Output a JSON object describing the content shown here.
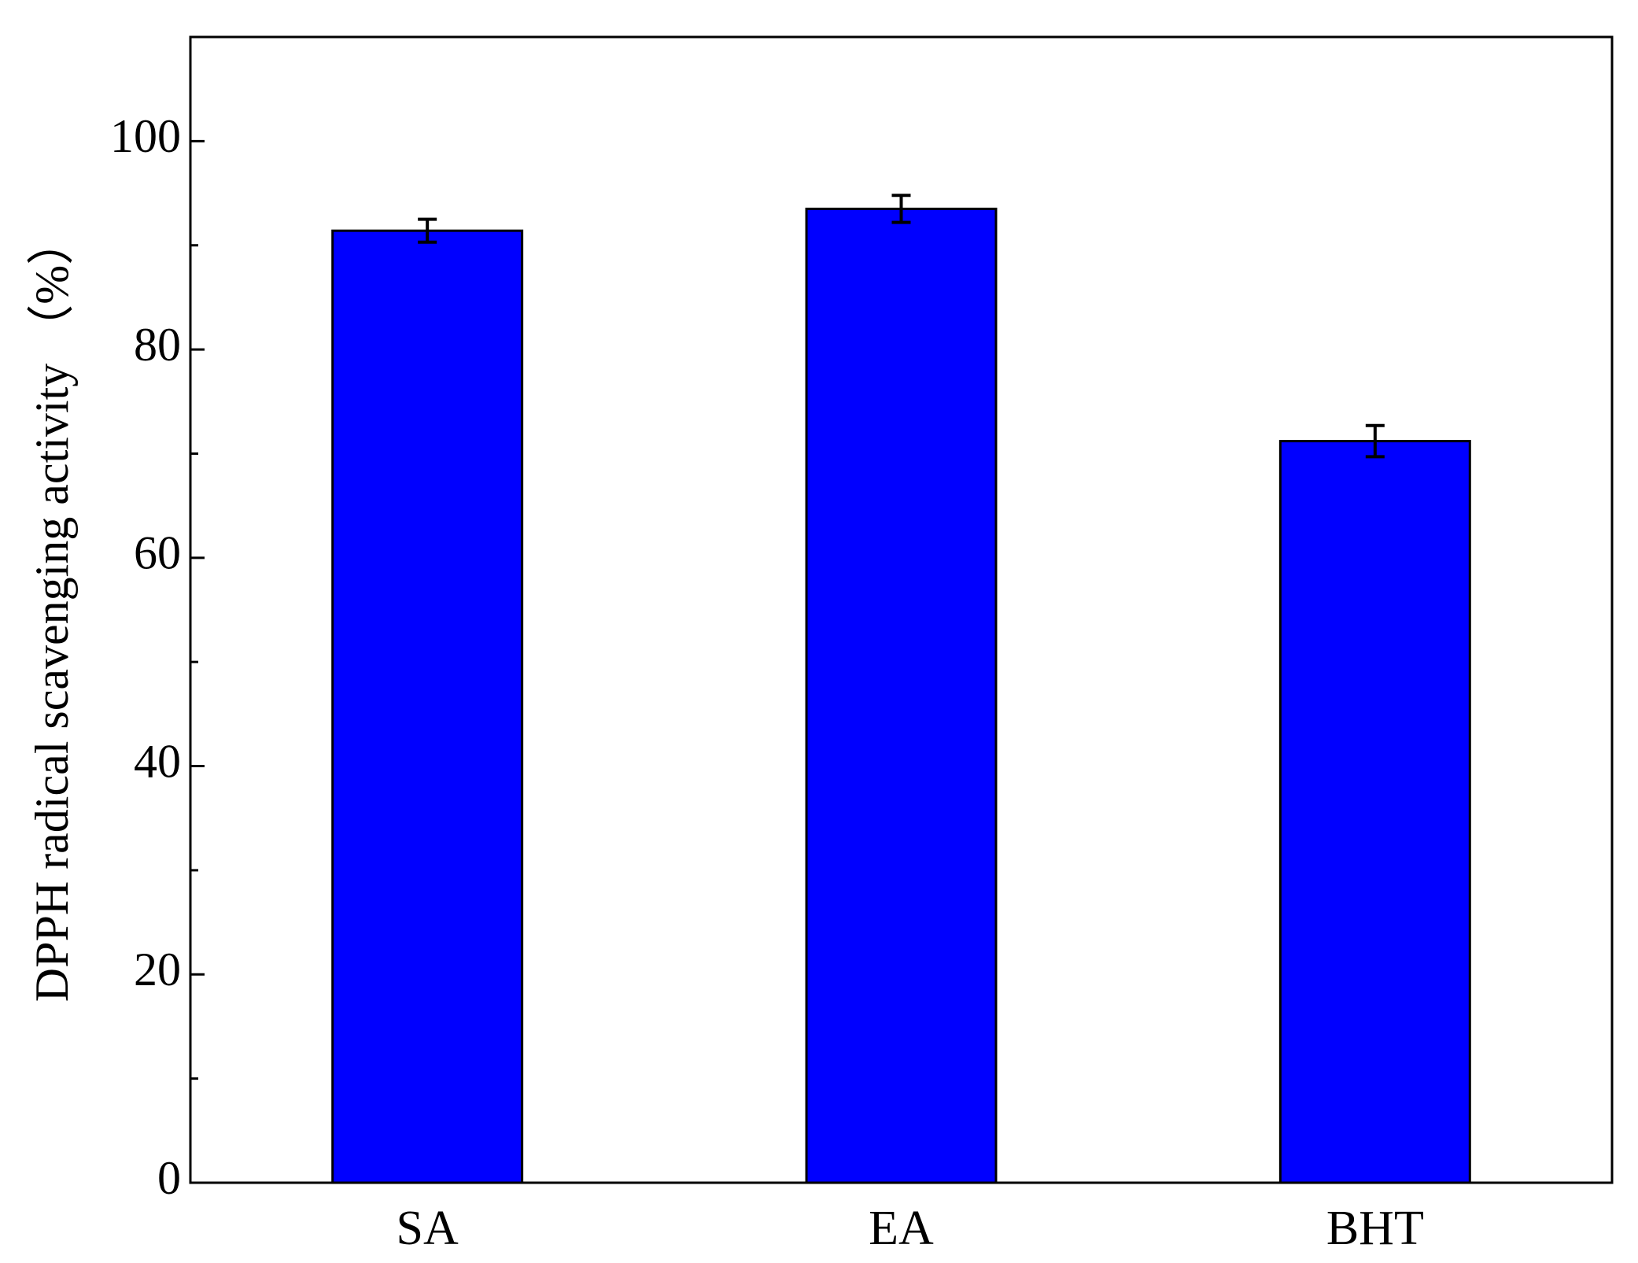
{
  "chart_data": {
    "type": "bar",
    "y_label": "DPPH radical scavenging activity （%）",
    "categories": [
      "SA",
      "EA",
      "BHT"
    ],
    "values": [
      91.4,
      93.5,
      71.2
    ],
    "errors": [
      1.1,
      1.3,
      1.5
    ],
    "color": "#0000ff",
    "ylim": [
      0,
      110
    ],
    "yticks": [
      0,
      20,
      40,
      60,
      80,
      100
    ],
    "minor_yticks": [
      10,
      30,
      50,
      70,
      90
    ]
  }
}
